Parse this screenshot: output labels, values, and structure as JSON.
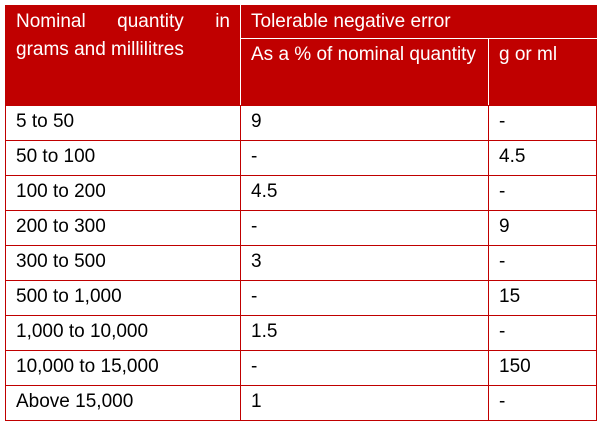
{
  "table": {
    "header": {
      "quantity": "Nominal quantity in grams and millilitres",
      "error": "Tolerable negative error",
      "percent": "As a % of nominal quantity",
      "unit": "g or ml"
    },
    "rows": [
      [
        "5 to 50",
        "9",
        "-"
      ],
      [
        "50 to 100",
        "-",
        "4.5"
      ],
      [
        "100 to 200",
        "4.5",
        "-"
      ],
      [
        "200 to 300",
        "-",
        "9"
      ],
      [
        "300 to 500",
        "3",
        "-"
      ],
      [
        "500 to 1,000",
        "-",
        "15"
      ],
      [
        "1,000 to 10,000",
        "1.5",
        "-"
      ],
      [
        "10,000 to 15,000",
        "-",
        "150"
      ],
      [
        "Above 15,000",
        "1",
        "-"
      ]
    ]
  }
}
